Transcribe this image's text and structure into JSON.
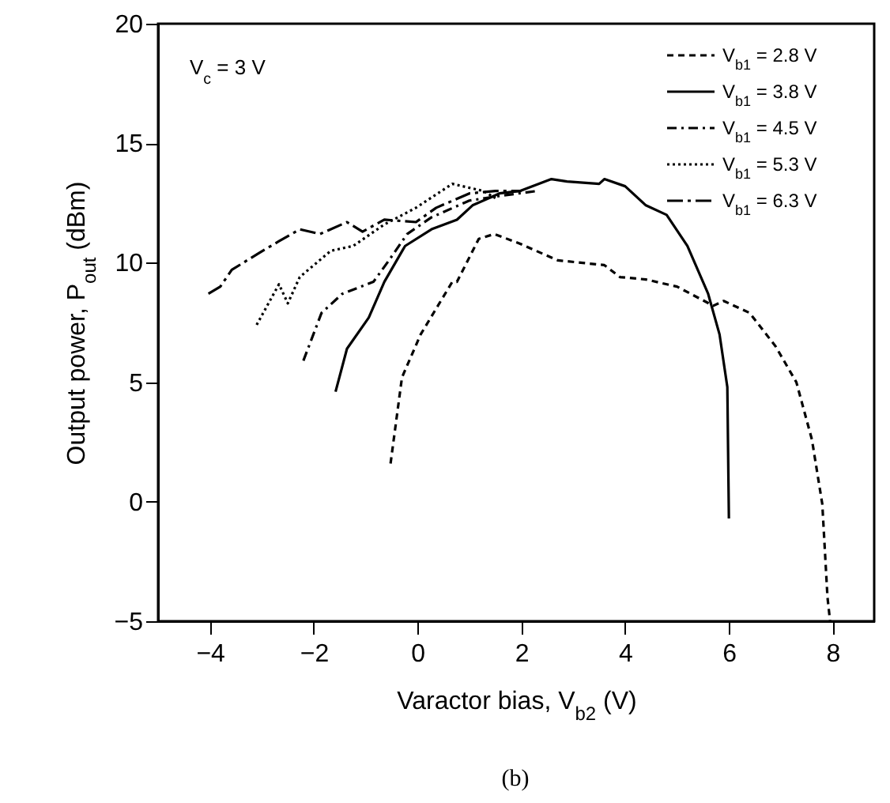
{
  "chart_data": {
    "type": "line",
    "xlabel": "Varactor bias, V$_{b2}$ (V)",
    "ylabel": "Output power, P$_{out}$ (dBm)",
    "annotations": [
      "V$_{c}$ = 3 V",
      "(b)"
    ],
    "xlim": [
      -5,
      8.8
    ],
    "xticks": [
      -4,
      -2,
      0,
      2,
      4,
      6,
      8
    ],
    "ylim": [
      -5,
      20
    ],
    "yticks": [
      -5,
      0,
      5,
      10,
      15,
      20
    ],
    "grid": false,
    "legend": "top right",
    "marker": "none",
    "series": [
      {
        "name": "V$_{b1}$ = 2.8 V",
        "color": "#000000",
        "line_style": "dashed",
        "x": [
          -0.52,
          -0.3,
          0.06,
          0.67,
          0.76,
          1.18,
          1.48,
          1.97,
          2.7,
          3.6,
          3.9,
          4.4,
          5.0,
          5.7,
          5.9,
          6.4,
          6.9,
          7.3,
          7.6,
          7.8,
          7.9,
          7.95
        ],
        "values": [
          1.6,
          5.2,
          7.0,
          9.2,
          9.2,
          11.0,
          11.2,
          10.8,
          10.1,
          9.9,
          9.4,
          9.3,
          9.0,
          8.2,
          8.4,
          7.9,
          6.5,
          5.0,
          2.6,
          -0.1,
          -4.0,
          -5.0
        ]
      },
      {
        "name": "V$_{b1}$ = 3.8 V",
        "color": "#000000",
        "line_style": "solid",
        "x": [
          -1.58,
          -1.36,
          -0.94,
          -0.64,
          -0.24,
          0.27,
          0.76,
          1.06,
          1.58,
          1.97,
          2.58,
          2.88,
          3.5,
          3.6,
          4.0,
          4.4,
          4.8,
          5.2,
          5.6,
          5.82,
          5.97,
          6.0
        ],
        "values": [
          4.6,
          6.4,
          7.7,
          9.2,
          10.7,
          11.4,
          11.8,
          12.4,
          12.9,
          13.0,
          13.5,
          13.4,
          13.3,
          13.5,
          13.2,
          12.4,
          12.0,
          10.7,
          8.7,
          7.0,
          4.8,
          -0.7
        ]
      },
      {
        "name": "V$_{b1}$ = 4.5 V",
        "color": "#000000",
        "line_style": "dashdot",
        "x": [
          -2.2,
          -1.85,
          -1.45,
          -0.85,
          -0.55,
          -0.2,
          0.27,
          1.0,
          1.6,
          2.3
        ],
        "values": [
          5.9,
          7.9,
          8.7,
          9.2,
          10.1,
          11.2,
          11.9,
          12.6,
          12.8,
          13.0
        ]
      },
      {
        "name": "V$_{b1}$ = 5.3 V",
        "color": "#000000",
        "line_style": "dotted",
        "x": [
          -3.1,
          -2.67,
          -2.5,
          -2.27,
          -1.67,
          -1.24,
          -0.64,
          -0.03,
          0.67,
          1.27,
          1.5
        ],
        "values": [
          7.4,
          9.1,
          8.3,
          9.4,
          10.5,
          10.7,
          11.6,
          12.3,
          13.3,
          13.0,
          12.7
        ]
      },
      {
        "name": "V$_{b1}$ = 6.3 V",
        "color": "#000000",
        "line_style": "longdashdot",
        "x": [
          -4.03,
          -3.8,
          -3.58,
          -3.06,
          -2.67,
          -2.27,
          -1.88,
          -1.36,
          -1.06,
          -0.64,
          -0.03,
          0.36,
          1.0,
          1.5,
          2.0
        ],
        "values": [
          8.7,
          9.0,
          9.7,
          10.4,
          10.9,
          11.4,
          11.2,
          11.7,
          11.3,
          11.8,
          11.7,
          12.3,
          12.9,
          13.0,
          13.0
        ]
      }
    ]
  }
}
